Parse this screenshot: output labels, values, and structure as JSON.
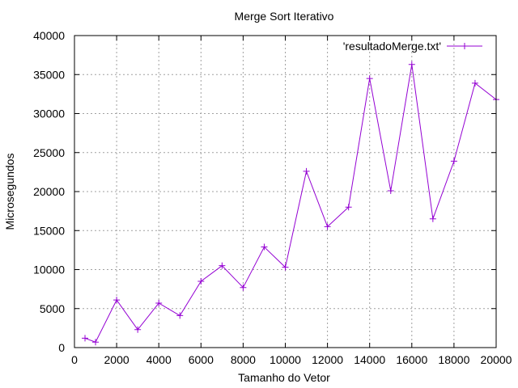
{
  "chart_data": {
    "type": "line",
    "title": "Merge Sort Iterativo",
    "xlabel": "Tamanho do Vetor",
    "ylabel": "Microsegundos",
    "xlim": [
      0,
      20000
    ],
    "ylim": [
      0,
      40000
    ],
    "x_ticks": [
      0,
      2000,
      4000,
      6000,
      8000,
      10000,
      12000,
      14000,
      16000,
      18000,
      20000
    ],
    "y_ticks": [
      0,
      5000,
      10000,
      15000,
      20000,
      25000,
      30000,
      35000,
      40000
    ],
    "x_tick_labels": [
      "0",
      "2000",
      "4000",
      "6000",
      "8000",
      "10000",
      "12000",
      "14000",
      "16000",
      "18000",
      "20000"
    ],
    "y_tick_labels": [
      "0",
      "5000",
      "10000",
      "15000",
      "20000",
      "25000",
      "30000",
      "35000",
      "40000"
    ],
    "grid": true,
    "legend_position": "top-right",
    "marker": "plus",
    "series": [
      {
        "name": "'resultadoMerge.txt'",
        "color": "#9400d3",
        "x": [
          500,
          1000,
          2000,
          3000,
          4000,
          5000,
          6000,
          7000,
          8000,
          9000,
          10000,
          11000,
          12000,
          13000,
          14000,
          15000,
          16000,
          17000,
          18000,
          19000,
          20000
        ],
        "y": [
          1200,
          700,
          6100,
          2300,
          5700,
          4100,
          8500,
          10500,
          7700,
          12900,
          10300,
          22600,
          15500,
          18000,
          34500,
          20100,
          36300,
          16500,
          23900,
          33900,
          31800
        ]
      }
    ]
  }
}
